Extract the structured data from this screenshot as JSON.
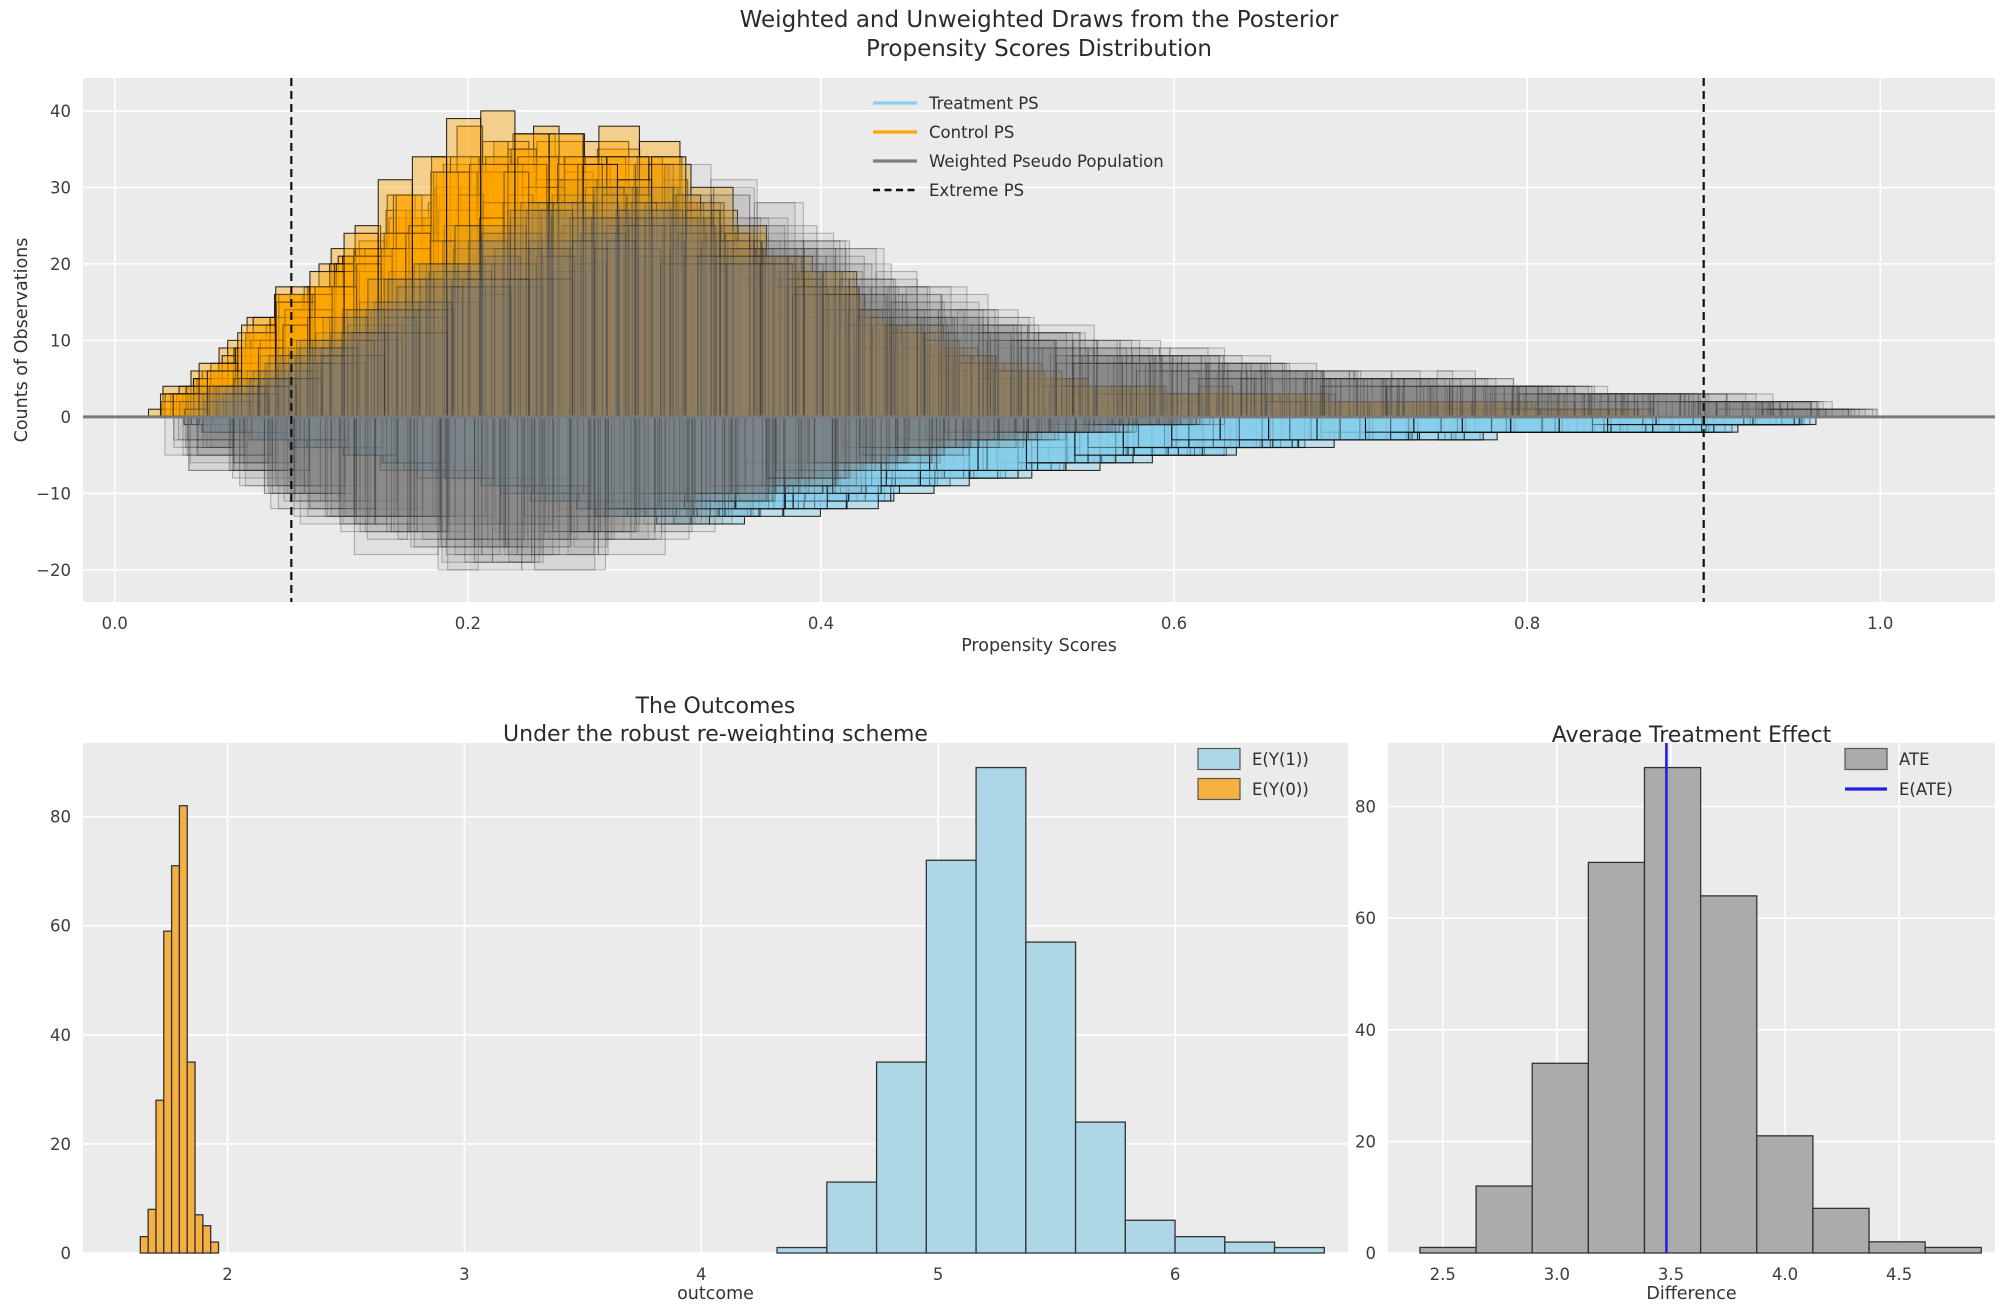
{
  "figure": {
    "axes_bg": "#ebebeb",
    "grid_color": "#ffffff",
    "tick_color": "#3d3d3d",
    "zero_line_color": "#7a7a7a"
  },
  "chart_data": [
    {
      "type": "mirrored-histogram-draws",
      "title_line1": "Weighted and Unweighted Draws from the Posterior",
      "title_line2": "Propensity Scores Distribution",
      "xlabel": "Propensity Scores",
      "ylabel": "Counts of Observations",
      "xlim": [
        -0.018,
        1.065
      ],
      "ylim": [
        -24.2,
        44.3
      ],
      "xtick_values": [
        0.0,
        0.2,
        0.4,
        0.6,
        0.8,
        1.0
      ],
      "xtick_labels": [
        "0.0",
        "0.2",
        "0.4",
        "0.6",
        "0.8",
        "1.0"
      ],
      "ytick_values": [
        -20,
        -10,
        0,
        10,
        20,
        30,
        40
      ],
      "ytick_labels": [
        "−20",
        "−10",
        "0",
        "10",
        "20",
        "30",
        "40"
      ],
      "extreme_ps_lines": [
        0.1,
        0.9
      ],
      "seed": 20240613,
      "legend": [
        {
          "label": "Treatment PS",
          "swatch": "line",
          "color": "#87CEEB"
        },
        {
          "label": "Control PS",
          "swatch": "line",
          "color": "#FFA500"
        },
        {
          "label": "Weighted Pseudo Population",
          "swatch": "line",
          "color": "#808080"
        },
        {
          "label": "Extreme PS",
          "swatch": "dashed",
          "color": "#111111"
        }
      ],
      "draw_groups": [
        {
          "name": "control-ps-draws",
          "side": 1,
          "fill": "rgba(255,165,0,0.40)",
          "edge": "rgba(10,10,10,0.85)",
          "edge_w": 1.1,
          "n_draws": 15,
          "bin_w": [
            0.012,
            0.028
          ],
          "env_x": [
            0.03,
            0.06,
            0.09,
            0.12,
            0.15,
            0.18,
            0.21,
            0.24,
            0.27,
            0.3,
            0.33,
            0.36,
            0.4,
            0.44,
            0.48,
            0.52,
            0.56,
            0.62,
            0.68,
            0.74,
            0.8,
            0.85
          ],
          "env_y": [
            1,
            6,
            13,
            19,
            25,
            31,
            36,
            36,
            35,
            33,
            28,
            23,
            17,
            12,
            8,
            5.5,
            4,
            3,
            2.5,
            2,
            1.5,
            0.8
          ]
        },
        {
          "name": "weighted-top-draws",
          "side": 1,
          "fill": "rgba(120,120,120,0.09)",
          "edge": "rgba(40,40,40,0.30)",
          "edge_w": 1.1,
          "n_draws": 18,
          "bin_w": [
            0.016,
            0.05
          ],
          "env_x": [
            0.05,
            0.1,
            0.15,
            0.2,
            0.25,
            0.3,
            0.35,
            0.4,
            0.45,
            0.5,
            0.55,
            0.6,
            0.65,
            0.7,
            0.75,
            0.8,
            0.85,
            0.9,
            0.97
          ],
          "env_y": [
            2,
            8,
            15,
            22,
            27,
            29,
            26,
            21,
            16,
            12,
            9.5,
            8,
            6.5,
            5.5,
            5,
            4,
            3,
            2.5,
            1.2
          ]
        },
        {
          "name": "treatment-ps-draws",
          "side": -1,
          "fill": "rgba(135,206,235,0.45)",
          "edge": "rgba(10,10,10,0.85)",
          "edge_w": 1.1,
          "n_draws": 15,
          "bin_w": [
            0.013,
            0.03
          ],
          "env_x": [
            0.05,
            0.1,
            0.15,
            0.2,
            0.25,
            0.3,
            0.35,
            0.4,
            0.45,
            0.5,
            0.55,
            0.6,
            0.65,
            0.7,
            0.75,
            0.8,
            0.85,
            0.9,
            0.95
          ],
          "env_y": [
            1,
            3,
            5,
            7.5,
            10,
            12,
            12.5,
            11,
            9,
            7,
            5.5,
            4.5,
            3.5,
            3,
            2.5,
            2,
            1.8,
            1.5,
            1
          ]
        },
        {
          "name": "weighted-bottom-draws",
          "side": -1,
          "fill": "rgba(120,120,120,0.09)",
          "edge": "rgba(40,40,40,0.30)",
          "edge_w": 1.1,
          "n_draws": 18,
          "bin_w": [
            0.016,
            0.05
          ],
          "env_x": [
            0.04,
            0.08,
            0.12,
            0.16,
            0.2,
            0.25,
            0.3,
            0.35,
            0.4,
            0.45,
            0.5,
            0.55,
            0.6
          ],
          "env_y": [
            3,
            8,
            13,
            16.5,
            18.5,
            18,
            15,
            11.5,
            8,
            5,
            3,
            1.8,
            0.8
          ]
        }
      ]
    },
    {
      "type": "histogram",
      "title_line1": "The Outcomes",
      "title_line2": "Under the robust re-weighting scheme",
      "xlabel": "outcome",
      "xlim": [
        1.39,
        6.73
      ],
      "ylim": [
        0,
        93.5
      ],
      "xtick_values": [
        2,
        3,
        4,
        5,
        6
      ],
      "xtick_labels": [
        "2",
        "3",
        "4",
        "5",
        "6"
      ],
      "ytick_values": [
        0,
        20,
        40,
        60,
        80
      ],
      "ytick_labels": [
        "0",
        "20",
        "40",
        "60",
        "80"
      ],
      "series": [
        {
          "name": "E(Y(1))",
          "bin_start": 4.32,
          "bin_width": 0.21,
          "counts": [
            1,
            13,
            35,
            72,
            89,
            57,
            24,
            6,
            3,
            2,
            1
          ],
          "fill": "#ADD6E6",
          "edge": "#333333"
        },
        {
          "name": "E(Y(0))",
          "bin_start": 1.632,
          "bin_width": 0.033,
          "counts": [
            3,
            8,
            28,
            59,
            71,
            82,
            35,
            7,
            5,
            2
          ],
          "fill": "#F5B042",
          "edge": "#333333"
        }
      ],
      "legend": [
        {
          "label": "E(Y(1))",
          "swatch": "patch",
          "color": "#ADD6E6"
        },
        {
          "label": "E(Y(0))",
          "swatch": "patch",
          "color": "#F5B042"
        }
      ]
    },
    {
      "type": "histogram",
      "title_line1": "Average Treatment Effect",
      "xlabel": "Difference",
      "xlim": [
        2.26,
        4.92
      ],
      "ylim": [
        0,
        91.4
      ],
      "xtick_values": [
        2.5,
        3.0,
        3.5,
        4.0,
        4.5
      ],
      "xtick_labels": [
        "2.5",
        "3.0",
        "3.5",
        "4.0",
        "4.5"
      ],
      "ytick_values": [
        0,
        20,
        40,
        60,
        80
      ],
      "ytick_labels": [
        "0",
        "20",
        "40",
        "60",
        "80"
      ],
      "series": [
        {
          "name": "ATE",
          "bin_start": 2.4,
          "bin_width": 0.246,
          "counts": [
            1,
            12,
            34,
            70,
            87,
            64,
            21,
            8,
            2,
            1
          ],
          "fill": "#ABABAB",
          "edge": "#333333"
        }
      ],
      "vline": {
        "x": 3.48,
        "color": "#2222DD",
        "label": "E(ATE)"
      },
      "legend": [
        {
          "label": "ATE",
          "swatch": "patch",
          "color": "#ABABAB"
        },
        {
          "label": "E(ATE)",
          "swatch": "line",
          "color": "#2222DD"
        }
      ]
    }
  ]
}
